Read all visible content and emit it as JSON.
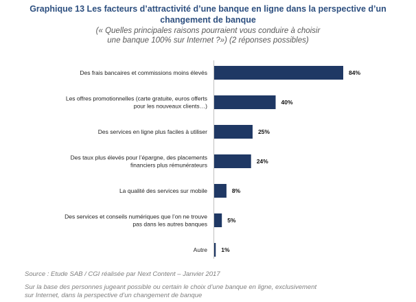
{
  "title_line1": "Graphique 13 Les facteurs d’attractivité d’une banque en ligne dans la perspective d’un",
  "title_line2": "changement de banque",
  "subtitle_line1": "(« Quelles principales raisons pourraient vous conduire à choisir",
  "subtitle_line2": "une banque 100% sur Internet ?») (2 réponses possibles)",
  "source": "Source : Etude SAB / CGI réalisée par Next Content – Janvier 2017",
  "note_line1": "Sur la base des personnes jugeant possible ou certain le choix d’une banque en ligne, exclusivement",
  "note_line2": "sur Internet, dans la perspective d’un changement de banque",
  "colors": {
    "bar": "#1f3864",
    "title": "#2d4f7f"
  },
  "chart_data": {
    "type": "bar",
    "orientation": "horizontal",
    "categories": [
      [
        "Des frais bancaires et commissions moins élevés"
      ],
      [
        "Les offres promotionnelles (carte gratuite, euros offerts",
        "pour les nouveaux clients…)"
      ],
      [
        "Des services en ligne plus faciles à utiliser"
      ],
      [
        "Des taux plus élevés pour l’épargne, des placements",
        "financiers plus rémunérateurs"
      ],
      [
        "La qualité des services sur mobile"
      ],
      [
        "Des services et conseils numériques que l’on ne trouve",
        "pas dans les autres banques"
      ],
      [
        "Autre"
      ]
    ],
    "values": [
      84,
      40,
      25,
      24,
      8,
      5,
      1
    ],
    "value_labels": [
      "84%",
      "40%",
      "25%",
      "24%",
      "8%",
      "5%",
      "1%"
    ],
    "xlim": [
      0,
      84
    ],
    "grid": false,
    "legend": "none"
  }
}
